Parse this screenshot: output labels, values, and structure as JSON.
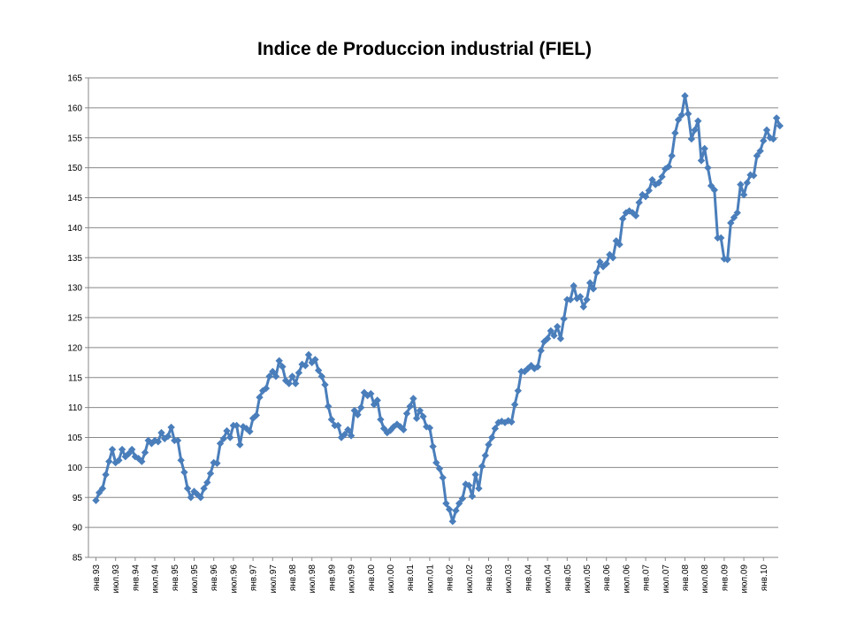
{
  "chart_data": {
    "type": "line",
    "title": "Indice de Produccion industrial (FIEL)",
    "xlabel": "",
    "ylabel": "",
    "ylim": [
      85,
      165
    ],
    "yticks": [
      85,
      90,
      95,
      100,
      105,
      110,
      115,
      120,
      125,
      130,
      135,
      140,
      145,
      150,
      155,
      160,
      165
    ],
    "grid": true,
    "legend": "none",
    "colors": {
      "line": "#4a7ebb",
      "grid": "#888888",
      "axis": "#888888"
    },
    "x_tick_labels": [
      "янв.93",
      "июл.93",
      "янв.94",
      "июл.94",
      "янв.95",
      "июл.95",
      "янв.96",
      "июл.96",
      "янв.97",
      "июл.97",
      "янв.98",
      "июл.98",
      "янв.99",
      "июл.99",
      "янв.00",
      "июл.00",
      "янв.01",
      "июл.01",
      "янв.02",
      "июл.02",
      "янв.03",
      "июл.03",
      "янв.04",
      "июл.04",
      "янв.05",
      "июл.05",
      "янв.06",
      "июл.06",
      "янв.07",
      "июл.07",
      "янв.08",
      "июл.08",
      "янв.09",
      "июл.09",
      "янв.10"
    ],
    "x_start": "янв.93",
    "x_frequency": "monthly",
    "series": [
      {
        "values": [
          94.5,
          95.8,
          96.5,
          98.8,
          101.0,
          103.0,
          100.8,
          101.2,
          103.0,
          101.8,
          102.3,
          103.0,
          101.8,
          101.5,
          101.0,
          102.5,
          104.5,
          104.0,
          104.5,
          104.3,
          105.8,
          104.8,
          105.2,
          106.7,
          104.5,
          104.5,
          101.2,
          99.2,
          96.5,
          95.0,
          96.0,
          95.5,
          95.0,
          96.5,
          97.5,
          99.0,
          100.8,
          100.7,
          104.0,
          104.8,
          106.1,
          105.0,
          107.0,
          107.0,
          103.8,
          106.8,
          106.5,
          106.0,
          108.2,
          108.7,
          111.7,
          112.8,
          113.2,
          115.2,
          116.0,
          115.2,
          117.8,
          116.8,
          114.5,
          114.0,
          115.2,
          114.0,
          115.8,
          117.2,
          117.0,
          118.8,
          117.5,
          118.0,
          116.2,
          115.2,
          113.8,
          110.2,
          108.0,
          107.0,
          107.0,
          105.0,
          105.5,
          106.3,
          105.3,
          109.5,
          108.8,
          110.0,
          112.5,
          112.0,
          112.3,
          110.5,
          111.2,
          108.0,
          106.5,
          105.8,
          106.2,
          106.8,
          107.2,
          106.8,
          106.3,
          109.0,
          110.2,
          111.5,
          108.2,
          109.5,
          108.5,
          106.8,
          106.6,
          103.5,
          100.8,
          99.8,
          98.3,
          94.0,
          93.0,
          91.0,
          92.8,
          94.0,
          94.8,
          97.2,
          97.0,
          95.2,
          98.8,
          96.5,
          100.2,
          102.0,
          103.8,
          105.0,
          106.5,
          107.5,
          107.7,
          107.5,
          107.8,
          107.6,
          110.5,
          112.8,
          116.0,
          116.0,
          116.5,
          117.0,
          116.5,
          116.8,
          119.5,
          121.0,
          121.5,
          122.8,
          122.0,
          123.5,
          121.5,
          124.8,
          128.0,
          128.0,
          130.3,
          128.2,
          128.5,
          126.8,
          128.0,
          130.8,
          129.8,
          132.5,
          134.3,
          133.5,
          134.0,
          135.5,
          135.0,
          137.8,
          137.2,
          141.5,
          142.5,
          142.8,
          142.5,
          142.0,
          144.2,
          145.5,
          145.2,
          146.2,
          148.0,
          147.2,
          147.5,
          148.5,
          149.8,
          150.2,
          152.0,
          155.8,
          158.0,
          158.8,
          162.0,
          159.0,
          154.8,
          156.3,
          157.8,
          151.2,
          153.2,
          150.0,
          147.0,
          146.3,
          138.3,
          138.3,
          134.8,
          134.7,
          140.8,
          141.7,
          142.5,
          147.2,
          145.5,
          147.5,
          148.8,
          148.7,
          152.0,
          152.8,
          154.5,
          156.3,
          155.0,
          154.8,
          158.3,
          157.0
        ]
      }
    ]
  }
}
